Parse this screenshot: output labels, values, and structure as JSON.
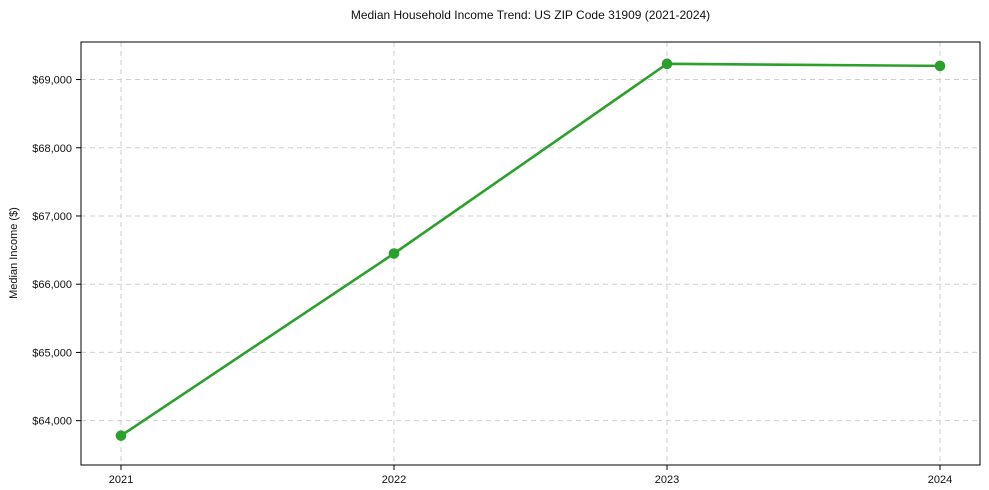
{
  "chart_data": {
    "type": "line",
    "title": "Median Household Income Trend: US ZIP Code 31909 (2021-2024)",
    "xlabel": "",
    "ylabel": "Median Income ($)",
    "x": [
      2021,
      2022,
      2023,
      2024
    ],
    "x_tick_labels": [
      "2021",
      "2022",
      "2023",
      "2024"
    ],
    "series": [
      {
        "name": "Median Household Income",
        "values": [
          63780,
          66450,
          69230,
          69200
        ]
      }
    ],
    "y_ticks": [
      64000,
      65000,
      66000,
      67000,
      68000,
      69000
    ],
    "y_tick_labels": [
      "$64,000",
      "$65,000",
      "$66,000",
      "$67,000",
      "$68,000",
      "$69,000"
    ],
    "ylim": [
      63350,
      69550
    ],
    "grid": true,
    "grid_style": "dashed",
    "legend_position": "none",
    "marker": "circle",
    "colors": {
      "line": "#2ca02c",
      "marker": "#2ca02c",
      "grid": "#cfcfcf",
      "axis": "#000000",
      "text": "#111111",
      "background": "#ffffff"
    }
  }
}
